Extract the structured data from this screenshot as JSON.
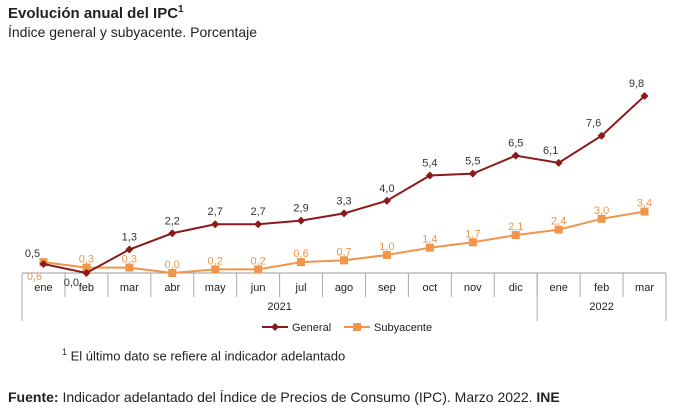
{
  "title": "Evolución anual del IPC",
  "title_sup": "1",
  "subtitle": "Índice general y subyacente. Porcentaje",
  "footnote_sup": "1",
  "footnote": " El último dato se refiere al indicador adelantado",
  "source_label": "Fuente:",
  "source_text": " Indicador adelantado del Índice de Precios de Consumo (IPC). Marzo 2022. ",
  "source_org": "INE",
  "chart_data": {
    "type": "line",
    "categories": [
      "ene",
      "feb",
      "mar",
      "abr",
      "may",
      "jun",
      "jul",
      "ago",
      "sep",
      "oct",
      "nov",
      "dic",
      "ene",
      "feb",
      "mar"
    ],
    "years": [
      {
        "label": "2021",
        "span": 12
      },
      {
        "label": "2022",
        "span": 3
      }
    ],
    "ylim": [
      0,
      9.8
    ],
    "grid": false,
    "legend": "bottom",
    "series": [
      {
        "name": "General",
        "color": "#8b1a1a",
        "marker": "diamond",
        "values": [
          0.5,
          0.0,
          1.3,
          2.2,
          2.7,
          2.7,
          2.9,
          3.3,
          4.0,
          5.4,
          5.5,
          6.5,
          6.1,
          7.6,
          9.8
        ]
      },
      {
        "name": "Subyacente",
        "color": "#f0954a",
        "marker": "square",
        "values": [
          0.6,
          0.3,
          0.3,
          0.0,
          0.2,
          0.2,
          0.6,
          0.7,
          1.0,
          1.4,
          1.7,
          2.1,
          2.4,
          3.0,
          3.4
        ]
      }
    ]
  }
}
